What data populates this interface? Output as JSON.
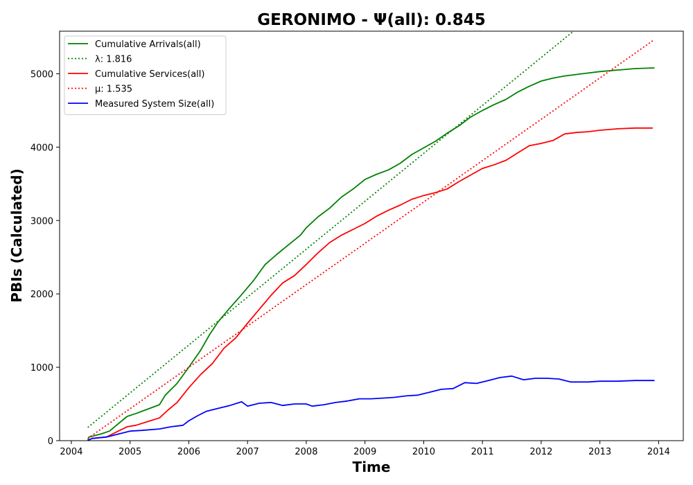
{
  "chart_data": {
    "type": "line",
    "title": "GERONIMO -  Ψ(all): 0.845",
    "xlabel": "Time",
    "ylabel": "PBIs (Calculated)",
    "xlim": [
      2003.8,
      2014.42
    ],
    "ylim": [
      0,
      5580
    ],
    "xticks": [
      2004,
      2005,
      2006,
      2007,
      2008,
      2009,
      2010,
      2011,
      2012,
      2013,
      2014
    ],
    "yticks": [
      0,
      1000,
      2000,
      3000,
      4000,
      5000
    ],
    "grid": false,
    "legend_position": "upper-left",
    "series": [
      {
        "name": "Cumulative Arrivals(all)",
        "color": "#008000",
        "style": "solid",
        "points": [
          [
            2004.28,
            0
          ],
          [
            2004.3,
            50
          ],
          [
            2004.5,
            90
          ],
          [
            2004.65,
            130
          ],
          [
            2004.8,
            230
          ],
          [
            2004.95,
            330
          ],
          [
            2005.1,
            370
          ],
          [
            2005.3,
            430
          ],
          [
            2005.5,
            490
          ],
          [
            2005.6,
            620
          ],
          [
            2005.8,
            780
          ],
          [
            2006.0,
            1000
          ],
          [
            2006.2,
            1230
          ],
          [
            2006.35,
            1440
          ],
          [
            2006.5,
            1620
          ],
          [
            2006.7,
            1810
          ],
          [
            2006.9,
            1990
          ],
          [
            2007.1,
            2180
          ],
          [
            2007.3,
            2400
          ],
          [
            2007.5,
            2540
          ],
          [
            2007.7,
            2670
          ],
          [
            2007.9,
            2800
          ],
          [
            2008.0,
            2900
          ],
          [
            2008.2,
            3050
          ],
          [
            2008.4,
            3170
          ],
          [
            2008.6,
            3320
          ],
          [
            2008.8,
            3430
          ],
          [
            2009.0,
            3560
          ],
          [
            2009.2,
            3630
          ],
          [
            2009.4,
            3690
          ],
          [
            2009.6,
            3780
          ],
          [
            2009.8,
            3900
          ],
          [
            2010.0,
            3990
          ],
          [
            2010.2,
            4080
          ],
          [
            2010.4,
            4190
          ],
          [
            2010.6,
            4290
          ],
          [
            2010.8,
            4410
          ],
          [
            2011.0,
            4500
          ],
          [
            2011.2,
            4580
          ],
          [
            2011.4,
            4650
          ],
          [
            2011.6,
            4750
          ],
          [
            2011.8,
            4830
          ],
          [
            2012.0,
            4900
          ],
          [
            2012.2,
            4940
          ],
          [
            2012.4,
            4970
          ],
          [
            2012.6,
            4990
          ],
          [
            2012.8,
            5010
          ],
          [
            2013.0,
            5030
          ],
          [
            2013.3,
            5050
          ],
          [
            2013.6,
            5070
          ],
          [
            2013.93,
            5080
          ]
        ]
      },
      {
        "name": "λ: 1.816",
        "color": "#008000",
        "style": "dotted",
        "points": [
          [
            2004.28,
            180
          ],
          [
            2012.55,
            5580
          ]
        ]
      },
      {
        "name": "Cumulative Services(all)",
        "color": "#ff0000",
        "style": "solid",
        "points": [
          [
            2004.28,
            0
          ],
          [
            2004.35,
            30
          ],
          [
            2004.6,
            50
          ],
          [
            2004.8,
            130
          ],
          [
            2004.95,
            190
          ],
          [
            2005.1,
            210
          ],
          [
            2005.3,
            260
          ],
          [
            2005.5,
            310
          ],
          [
            2005.65,
            420
          ],
          [
            2005.8,
            520
          ],
          [
            2006.0,
            720
          ],
          [
            2006.2,
            900
          ],
          [
            2006.4,
            1050
          ],
          [
            2006.6,
            1260
          ],
          [
            2006.8,
            1400
          ],
          [
            2007.0,
            1600
          ],
          [
            2007.2,
            1790
          ],
          [
            2007.4,
            1980
          ],
          [
            2007.6,
            2150
          ],
          [
            2007.8,
            2250
          ],
          [
            2008.0,
            2400
          ],
          [
            2008.2,
            2560
          ],
          [
            2008.4,
            2700
          ],
          [
            2008.6,
            2800
          ],
          [
            2008.8,
            2880
          ],
          [
            2009.0,
            2960
          ],
          [
            2009.2,
            3060
          ],
          [
            2009.4,
            3140
          ],
          [
            2009.6,
            3210
          ],
          [
            2009.8,
            3290
          ],
          [
            2010.0,
            3340
          ],
          [
            2010.2,
            3380
          ],
          [
            2010.4,
            3430
          ],
          [
            2010.6,
            3530
          ],
          [
            2010.8,
            3620
          ],
          [
            2011.0,
            3710
          ],
          [
            2011.2,
            3760
          ],
          [
            2011.4,
            3820
          ],
          [
            2011.6,
            3920
          ],
          [
            2011.8,
            4020
          ],
          [
            2012.0,
            4050
          ],
          [
            2012.2,
            4090
          ],
          [
            2012.4,
            4180
          ],
          [
            2012.6,
            4200
          ],
          [
            2012.8,
            4210
          ],
          [
            2013.0,
            4230
          ],
          [
            2013.3,
            4250
          ],
          [
            2013.6,
            4260
          ],
          [
            2013.9,
            4260
          ]
        ]
      },
      {
        "name": "μ: 1.535",
        "color": "#ff0000",
        "style": "dotted",
        "points": [
          [
            2004.28,
            30
          ],
          [
            2013.9,
            5450
          ]
        ]
      },
      {
        "name": "Measured System Size(all)",
        "color": "#0000ff",
        "style": "solid",
        "points": [
          [
            2004.28,
            0
          ],
          [
            2004.35,
            30
          ],
          [
            2004.6,
            50
          ],
          [
            2004.8,
            90
          ],
          [
            2005.0,
            130
          ],
          [
            2005.2,
            140
          ],
          [
            2005.5,
            160
          ],
          [
            2005.7,
            190
          ],
          [
            2005.9,
            210
          ],
          [
            2006.0,
            270
          ],
          [
            2006.15,
            340
          ],
          [
            2006.3,
            400
          ],
          [
            2006.5,
            440
          ],
          [
            2006.7,
            480
          ],
          [
            2006.9,
            530
          ],
          [
            2007.0,
            470
          ],
          [
            2007.2,
            510
          ],
          [
            2007.4,
            520
          ],
          [
            2007.6,
            480
          ],
          [
            2007.8,
            500
          ],
          [
            2008.0,
            500
          ],
          [
            2008.1,
            470
          ],
          [
            2008.3,
            490
          ],
          [
            2008.5,
            520
          ],
          [
            2008.7,
            540
          ],
          [
            2008.9,
            570
          ],
          [
            2009.1,
            570
          ],
          [
            2009.3,
            580
          ],
          [
            2009.5,
            590
          ],
          [
            2009.7,
            610
          ],
          [
            2009.9,
            620
          ],
          [
            2010.1,
            660
          ],
          [
            2010.3,
            700
          ],
          [
            2010.5,
            710
          ],
          [
            2010.7,
            790
          ],
          [
            2010.9,
            780
          ],
          [
            2011.1,
            820
          ],
          [
            2011.3,
            860
          ],
          [
            2011.5,
            880
          ],
          [
            2011.7,
            830
          ],
          [
            2011.9,
            850
          ],
          [
            2012.1,
            850
          ],
          [
            2012.3,
            840
          ],
          [
            2012.5,
            800
          ],
          [
            2012.8,
            800
          ],
          [
            2013.0,
            810
          ],
          [
            2013.3,
            810
          ],
          [
            2013.6,
            820
          ],
          [
            2013.93,
            820
          ]
        ]
      }
    ]
  }
}
